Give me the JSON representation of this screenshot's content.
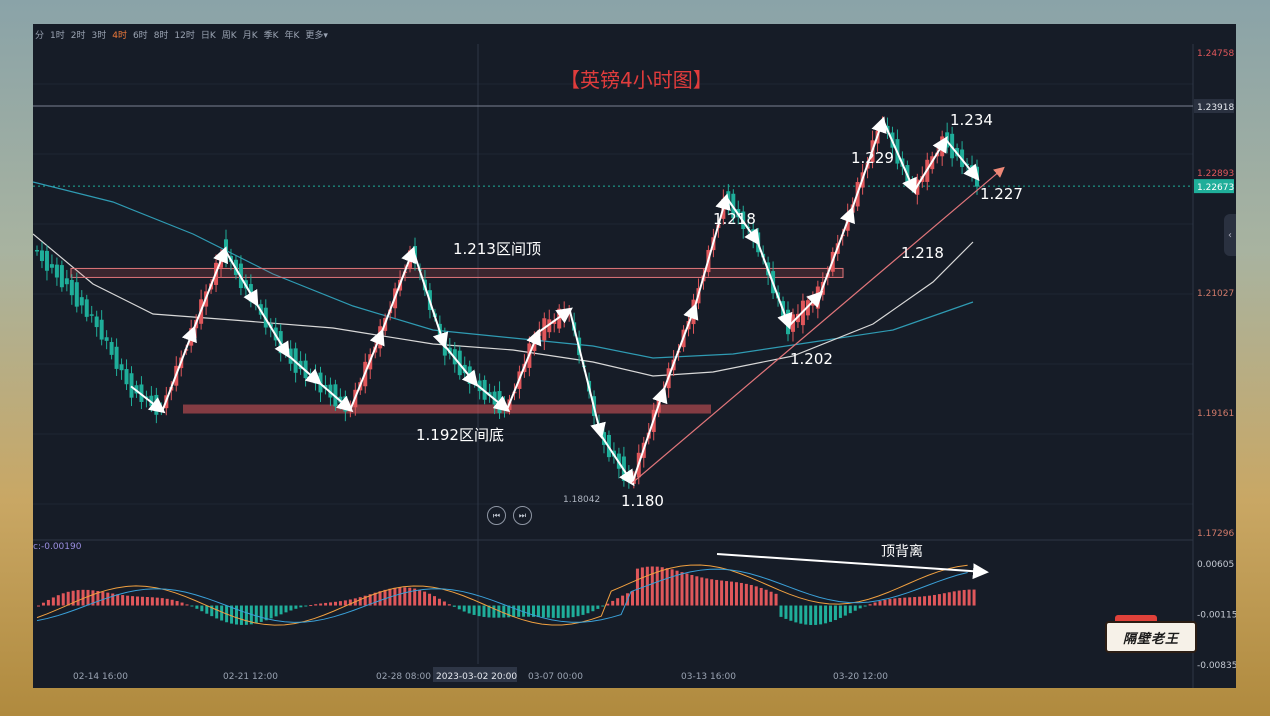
{
  "toolbar": {
    "timeframes": [
      "分",
      "1时",
      "2时",
      "3时",
      "4时",
      "6时",
      "8时",
      "12时",
      "日K",
      "周K",
      "月K",
      "季K",
      "年K",
      "更多"
    ],
    "active": "4时"
  },
  "chart_title": "【英镑4小时图】",
  "colors": {
    "up": "#e0575b",
    "down": "#1fae9a",
    "background": "#161c27",
    "white_ma": "#d8d8d8",
    "teal_ma": "#2f9bb3"
  },
  "chart_data": [
    {
      "type": "line",
      "title": "【英镑4小时图】",
      "y_axis_ticks": [
        "1.24758",
        "1.23918",
        "1.22893",
        "1.22673",
        "1.21027",
        "1.19161",
        "1.17296"
      ],
      "ylim": [
        1.17296,
        1.24758
      ],
      "x_axis_ticks": [
        "02-14 16:00",
        "02-21 12:00",
        "02-28 08:00",
        "2023-03-02 20:00",
        "03-07 00:00",
        "03-13 16:00",
        "03-20 12:00"
      ],
      "price_labels": [
        "1.18042"
      ],
      "series": [
        {
          "values": [
            1.2165,
            1.2115,
            1.2048,
            1.1956,
            1.1918,
            1.2045,
            1.2168,
            1.2085,
            1.2005,
            1.1962,
            1.192,
            1.204,
            1.2168,
            1.202,
            1.196,
            1.192,
            1.204,
            1.2075,
            1.188,
            1.1806,
            1.195,
            1.208,
            1.225,
            1.218,
            1.205,
            1.21,
            1.223,
            1.237,
            1.226,
            1.234,
            1.228
          ]
        }
      ],
      "annotations": [
        {
          "text": "1.213区间顶",
          "value": 1.213
        },
        {
          "text": "1.192区间底",
          "value": 1.192
        },
        {
          "text": "1.180",
          "value": 1.18
        },
        {
          "text": "1.218",
          "value": 1.218
        },
        {
          "text": "1.202",
          "value": 1.202
        },
        {
          "text": "1.229",
          "value": 1.229
        },
        {
          "text": "1.218",
          "value": 1.218
        },
        {
          "text": "1.234",
          "value": 1.234
        },
        {
          "text": "1.227",
          "value": 1.227
        }
      ]
    },
    {
      "type": "bar",
      "title": "",
      "indicator_label": "c:-0.00190",
      "y_axis_ticks": [
        "0.00605",
        "-0.00115",
        "-0.00835"
      ],
      "ylim": [
        -0.00835,
        0.0085
      ],
      "annotations": [
        {
          "text": "顶背离"
        }
      ]
    }
  ],
  "logo_text": "隔壁老王"
}
